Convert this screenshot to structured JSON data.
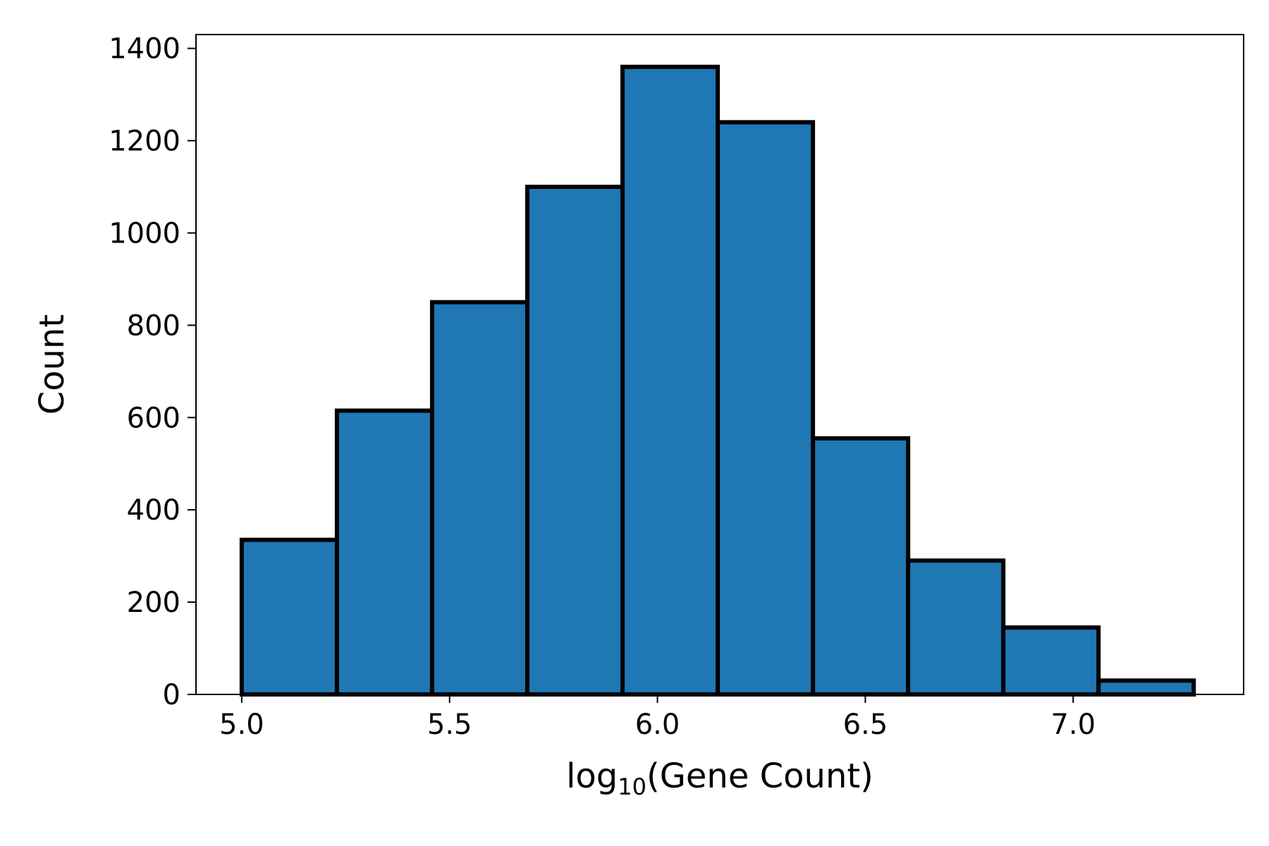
{
  "chart_data": {
    "type": "bar",
    "histogram": true,
    "bin_edges": [
      5.0,
      5.229,
      5.458,
      5.687,
      5.916,
      6.145,
      6.374,
      6.603,
      6.832,
      7.061,
      7.29
    ],
    "values": [
      335,
      615,
      850,
      1100,
      1360,
      1240,
      555,
      290,
      145,
      30
    ],
    "xlabel": {
      "prefix": "log",
      "subscript": "10",
      "suffix": "(Gene Count)"
    },
    "ylabel": "Count",
    "xlim": [
      4.89,
      7.41
    ],
    "ylim": [
      0,
      1430
    ],
    "xticks": [
      5.0,
      5.5,
      6.0,
      6.5,
      7.0
    ],
    "xtick_labels": [
      "5.0",
      "5.5",
      "6.0",
      "6.5",
      "7.0"
    ],
    "yticks": [
      0,
      200,
      400,
      600,
      800,
      1000,
      1200,
      1400
    ],
    "ytick_labels": [
      "0",
      "200",
      "400",
      "600",
      "800",
      "1000",
      "1200",
      "1400"
    ],
    "grid": false,
    "legend": "none",
    "colors": {
      "bar_fill": "#1f77b4",
      "bar_edge": "#000000",
      "axes": "#000000"
    }
  }
}
